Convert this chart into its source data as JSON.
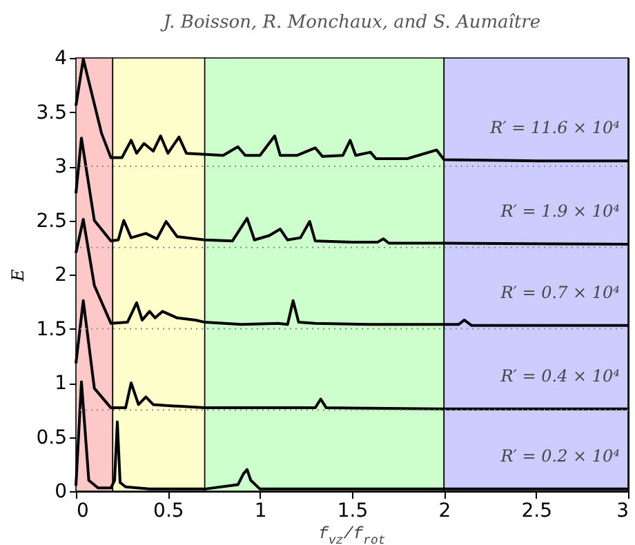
{
  "chart_data": {
    "type": "line",
    "title": "J. Boisson, R. Monchaux, and S. Aumaître",
    "xlabel": "f$_{vz}$/f$_{rot}$",
    "ylabel": "E",
    "xlim": [
      0,
      3
    ],
    "ylim": [
      0,
      4
    ],
    "xticks": [
      0,
      0.5,
      1,
      1.5,
      2,
      2.5,
      3
    ],
    "yticks": [
      0,
      0.5,
      1,
      1.5,
      2,
      2.5,
      3,
      3.5,
      4
    ],
    "marker": "none",
    "line_style": "solid",
    "bands": [
      {
        "axis": "x",
        "from": 0,
        "to": 0.2,
        "color": "#ffc8c8"
      },
      {
        "axis": "x",
        "from": 0.2,
        "to": 0.7,
        "color": "#ffffcc"
      },
      {
        "axis": "x",
        "from": 0.7,
        "to": 2,
        "color": "#ccffcc"
      },
      {
        "axis": "x",
        "from": 2,
        "to": 3,
        "color": "#ccccff"
      }
    ],
    "ref_lines": [
      {
        "axis": "y",
        "value": 0.75,
        "line_style": "dotted",
        "color": "#888888"
      },
      {
        "axis": "y",
        "value": 1.5,
        "line_style": "dotted",
        "color": "#888888"
      },
      {
        "axis": "y",
        "value": 2.25,
        "line_style": "dotted",
        "color": "#888888"
      },
      {
        "axis": "y",
        "value": 3,
        "line_style": "dotted",
        "color": "#888888"
      }
    ],
    "series": [
      {
        "name": "R′ = 11.6 × 10⁴",
        "color": "#000000",
        "x": [
          0,
          0.04,
          0.14,
          0.19,
          0.25,
          0.3,
          0.33,
          0.37,
          0.42,
          0.46,
          0.5,
          0.56,
          0.6,
          0.7,
          0.8,
          0.88,
          0.92,
          1.0,
          1.08,
          1.11,
          1.2,
          1.3,
          1.34,
          1.45,
          1.49,
          1.52,
          1.6,
          1.63,
          1.8,
          1.96,
          2.0,
          2.5,
          3.0
        ],
        "values": [
          3.56,
          3.99,
          3.3,
          3.08,
          3.08,
          3.24,
          3.12,
          3.21,
          3.14,
          3.28,
          3.12,
          3.27,
          3.12,
          3.11,
          3.1,
          3.18,
          3.1,
          3.1,
          3.28,
          3.1,
          3.1,
          3.17,
          3.09,
          3.1,
          3.24,
          3.1,
          3.13,
          3.07,
          3.07,
          3.15,
          3.06,
          3.05,
          3.05
        ]
      },
      {
        "name": "R′ = 1.9 × 10⁴",
        "color": "#000000",
        "x": [
          0,
          0.03,
          0.1,
          0.19,
          0.23,
          0.26,
          0.3,
          0.38,
          0.44,
          0.49,
          0.55,
          0.7,
          0.85,
          0.93,
          0.97,
          1.05,
          1.11,
          1.15,
          1.22,
          1.27,
          1.3,
          1.5,
          1.64,
          1.67,
          1.7,
          2.0,
          3.0
        ],
        "values": [
          2.75,
          3.26,
          2.5,
          2.31,
          2.32,
          2.5,
          2.34,
          2.38,
          2.33,
          2.49,
          2.35,
          2.32,
          2.31,
          2.52,
          2.32,
          2.36,
          2.42,
          2.32,
          2.34,
          2.49,
          2.31,
          2.3,
          2.3,
          2.33,
          2.29,
          2.29,
          2.28
        ]
      },
      {
        "name": "R′ = 0.7 × 10⁴",
        "color": "#000000",
        "x": [
          0,
          0.04,
          0.1,
          0.19,
          0.28,
          0.33,
          0.36,
          0.4,
          0.43,
          0.47,
          0.55,
          0.65,
          0.7,
          0.9,
          1.1,
          1.15,
          1.18,
          1.21,
          1.3,
          1.6,
          2.0,
          2.08,
          2.11,
          2.15,
          3.0
        ],
        "values": [
          2.2,
          2.51,
          1.9,
          1.55,
          1.56,
          1.74,
          1.58,
          1.66,
          1.6,
          1.66,
          1.6,
          1.58,
          1.56,
          1.54,
          1.55,
          1.54,
          1.76,
          1.56,
          1.55,
          1.54,
          1.54,
          1.54,
          1.58,
          1.53,
          1.53
        ]
      },
      {
        "name": "R′ = 0.4 × 10⁴",
        "color": "#000000",
        "x": [
          0,
          0.04,
          0.1,
          0.19,
          0.27,
          0.3,
          0.34,
          0.38,
          0.42,
          0.5,
          0.7,
          1.0,
          1.3,
          1.33,
          1.36,
          2.0,
          3.0
        ],
        "values": [
          1.18,
          1.76,
          0.95,
          0.77,
          0.77,
          1.0,
          0.8,
          0.87,
          0.8,
          0.79,
          0.77,
          0.77,
          0.77,
          0.85,
          0.77,
          0.76,
          0.76
        ]
      },
      {
        "name": "R′ = 0.2 × 10⁴",
        "color": "#000000",
        "x": [
          0,
          0.03,
          0.07,
          0.12,
          0.19,
          0.21,
          0.225,
          0.24,
          0.27,
          0.4,
          0.7,
          0.88,
          0.91,
          0.93,
          0.95,
          1.0,
          1.5,
          2.0,
          3.0
        ],
        "values": [
          0.05,
          1.01,
          0.1,
          0.03,
          0.03,
          0.1,
          0.64,
          0.08,
          0.04,
          0.02,
          0.02,
          0.06,
          0.16,
          0.2,
          0.1,
          0.02,
          0.02,
          0.02,
          0.02
        ]
      }
    ]
  }
}
